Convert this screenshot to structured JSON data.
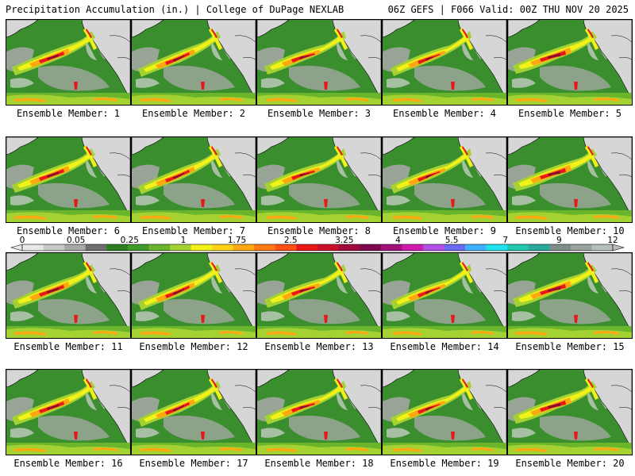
{
  "header": {
    "left": "Precipitation Accumulation (in.) | College of DuPage NEXLAB",
    "right": "06Z GEFS | F066 Valid: 00Z THU NOV 20 2025"
  },
  "panel_label_prefix": "Ensemble Member: ",
  "members": [
    "1",
    "2",
    "3",
    "4",
    "5",
    "6",
    "7",
    "8",
    "9",
    "10",
    "11",
    "12",
    "13",
    "14",
    "15",
    "16",
    "17",
    "18",
    "19",
    "20"
  ],
  "colorbar": {
    "tick_labels": [
      "0",
      "0.05",
      "0.25",
      "1",
      "1.75",
      "2.5",
      "3.25",
      "4",
      "5.5",
      "7",
      "9",
      "12"
    ],
    "colors": [
      "#e8e8e8",
      "#c8c8c8",
      "#a8a8a8",
      "#6e6e6e",
      "#2e7d1f",
      "#3f9a2a",
      "#6bb52d",
      "#a4d233",
      "#f2f218",
      "#ffd21a",
      "#ffa811",
      "#ff7a12",
      "#ff4f14",
      "#e81818",
      "#c8102a",
      "#a00b3a",
      "#7a0a4c",
      "#a4107a",
      "#d11ab0",
      "#b34ee8",
      "#6a6af2",
      "#3fb0ff",
      "#1ee4f0",
      "#20c8b0",
      "#2aa89a",
      "#7d8e8a",
      "#9aa09e",
      "#b8bebc"
    ]
  },
  "map_colors": {
    "base": "#3b8e2e",
    "light_green": "#6bb52d",
    "yellow_green": "#a4d233",
    "yellow": "#f2f218",
    "orange": "#ffa811",
    "red": "#e81818",
    "dark_red": "#8a0a30",
    "gray": "#a8a8a8",
    "light_gray": "#d6d6d6",
    "land_outline": "#000000"
  }
}
